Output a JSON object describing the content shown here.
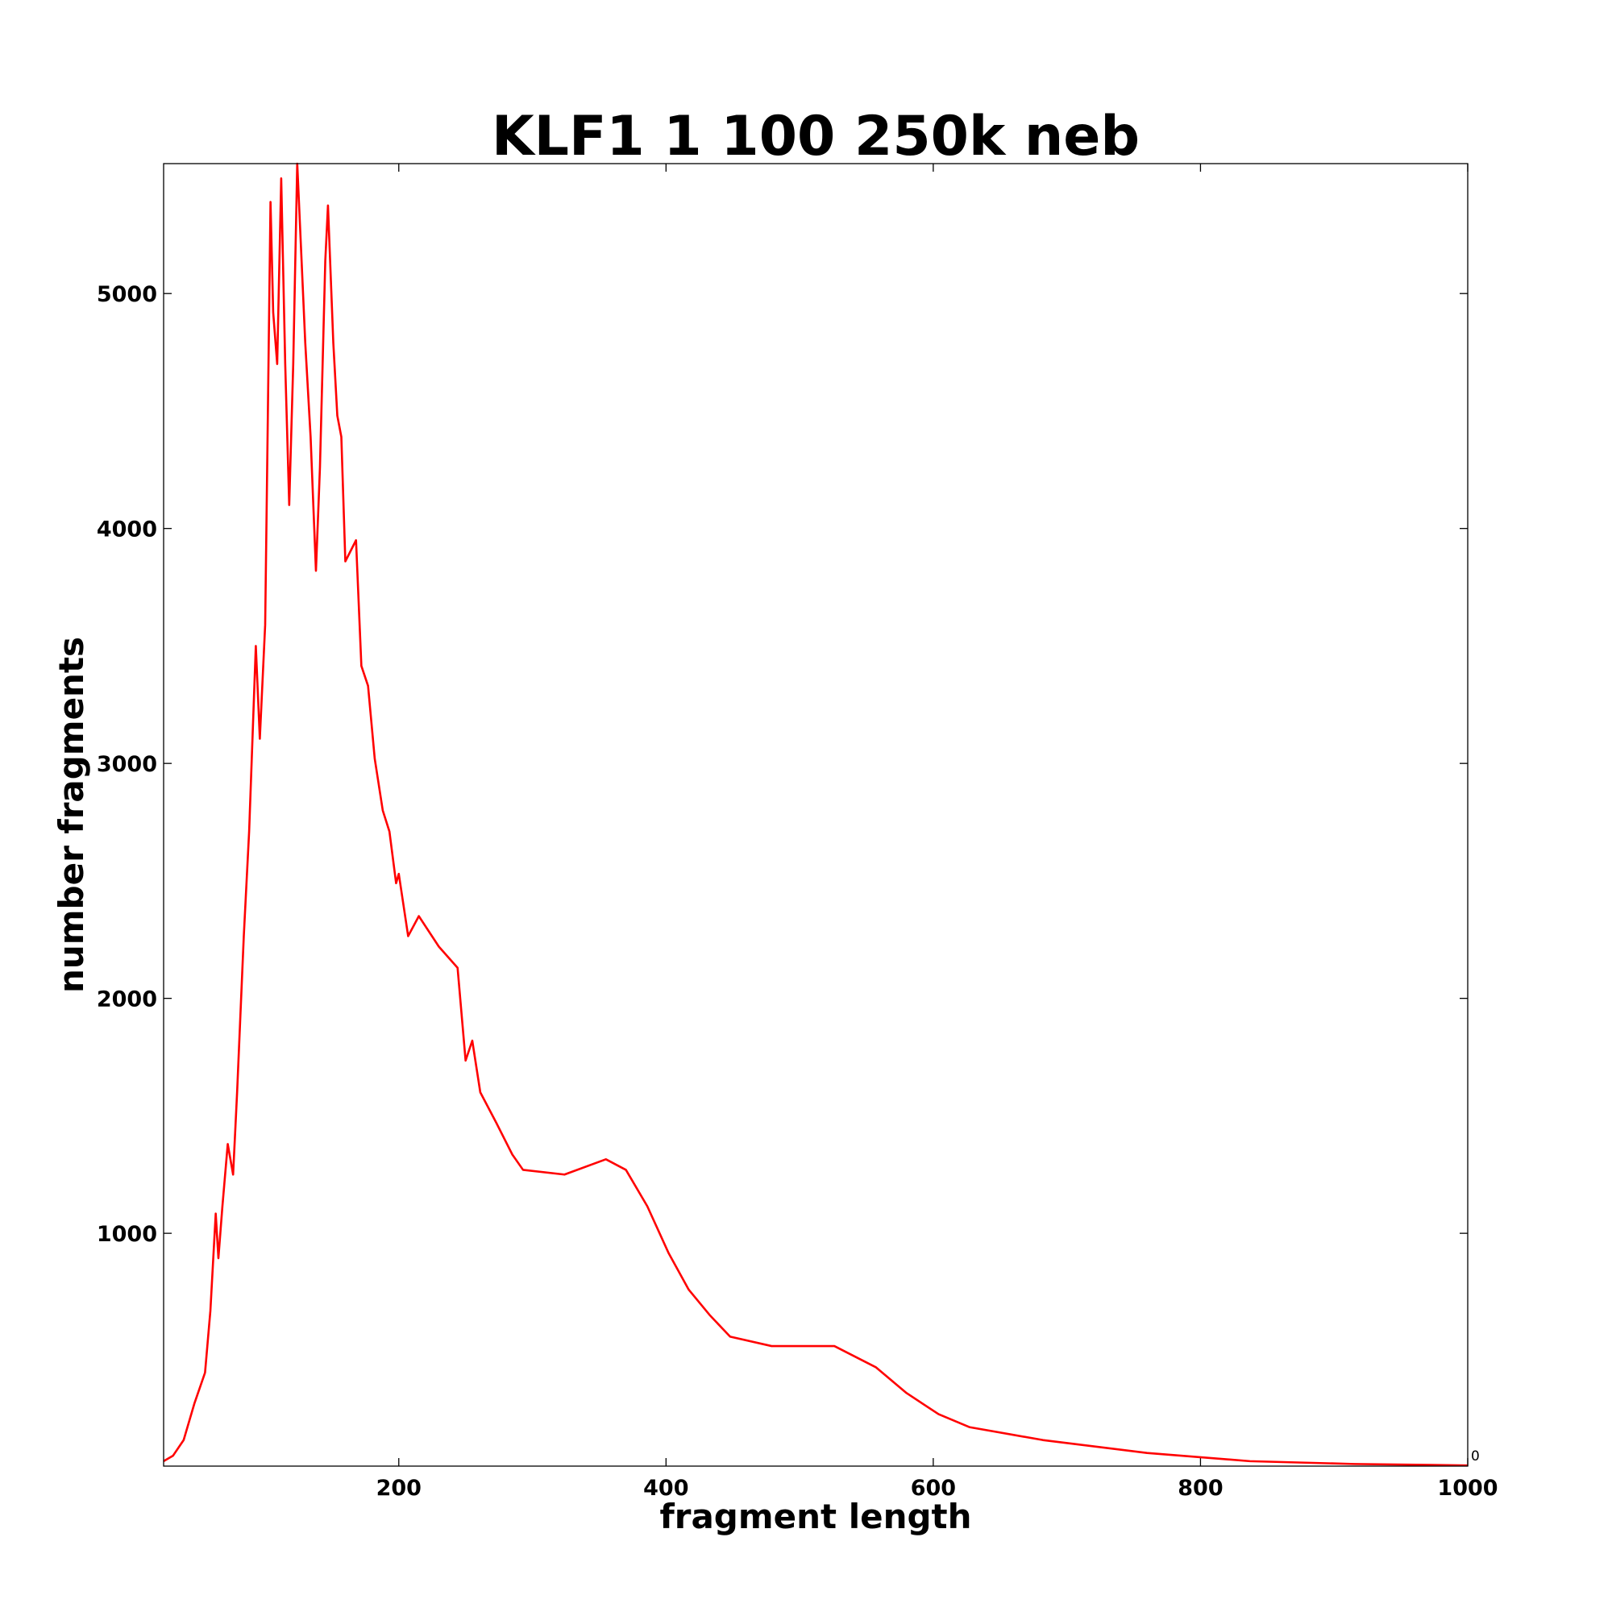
{
  "chart_data": {
    "type": "line",
    "title": "KLF1 1 100 250k neb",
    "x_label": "fragment length",
    "y_label": "number fragments",
    "annotation": "0",
    "xlim": [
      24,
      1000
    ],
    "ylim": [
      9,
      5553
    ],
    "xticks": [
      200,
      400,
      600,
      800,
      1000
    ],
    "yticks": [
      1000,
      2000,
      3000,
      4000,
      5000
    ],
    "grid": false,
    "x": [
      24,
      31,
      39,
      47,
      55,
      59,
      63,
      65,
      68,
      72,
      76,
      79,
      84,
      88,
      93,
      96,
      100,
      102,
      104,
      106,
      109,
      112,
      115,
      118,
      121,
      124,
      130,
      134,
      138,
      141,
      145,
      147,
      151,
      154,
      157,
      160,
      168,
      172,
      177,
      182,
      188,
      193,
      198,
      200,
      207,
      215,
      230,
      244,
      250,
      255,
      261,
      273,
      285,
      293,
      324,
      355,
      370,
      386,
      402,
      417,
      433,
      448,
      479,
      526,
      557,
      580,
      604,
      627,
      682,
      760,
      837,
      915,
      1000
    ],
    "series": [
      {
        "name": "fragments",
        "color": "#ff0000",
        "values": [
          30,
          53,
          120,
          275,
          407,
          670,
          1084,
          894,
          1115,
          1380,
          1250,
          1600,
          2265,
          2710,
          3500,
          3105,
          3590,
          4480,
          5390,
          4920,
          4700,
          5490,
          4700,
          4100,
          4700,
          5553,
          4790,
          4390,
          3820,
          4260,
          5140,
          5375,
          4790,
          4480,
          4390,
          3860,
          3950,
          3415,
          3330,
          3020,
          2800,
          2710,
          2490,
          2530,
          2265,
          2350,
          2220,
          2130,
          1735,
          1820,
          1600,
          1470,
          1335,
          1270,
          1250,
          1315,
          1270,
          1115,
          915,
          760,
          650,
          560,
          520,
          520,
          430,
          320,
          230,
          175,
          120,
          65,
          30,
          18,
          12
        ]
      }
    ]
  }
}
